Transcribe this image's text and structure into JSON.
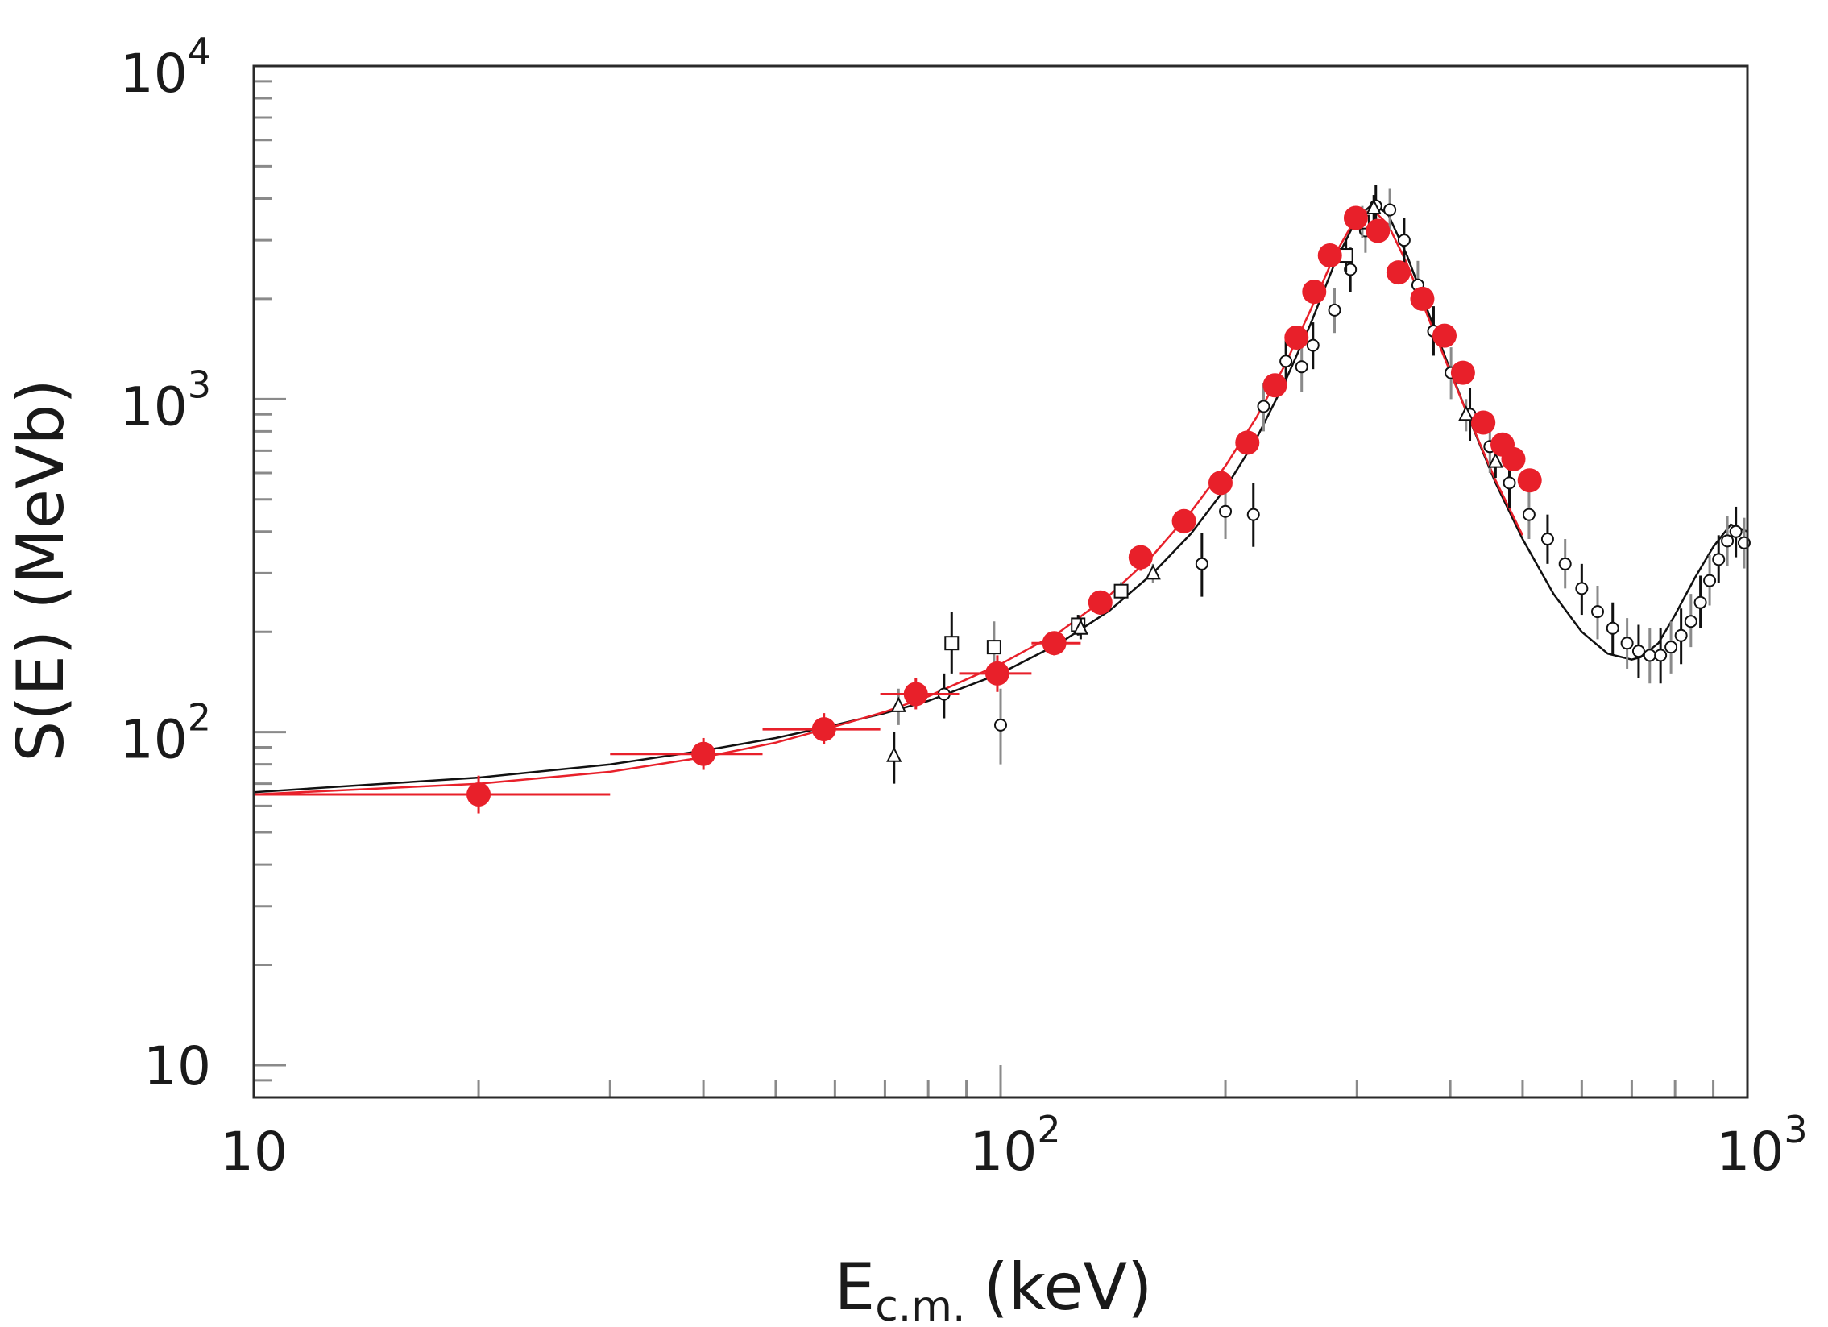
{
  "chart_data": {
    "type": "scatter",
    "title": "",
    "xscale": "log",
    "yscale": "log",
    "xlim": [
      10,
      1000
    ],
    "ylim": [
      8,
      10000
    ],
    "xlabel": {
      "main": "E",
      "sub": "c.m.",
      "unit": "(keV)"
    },
    "ylabel": "S(E)  (MeVb)",
    "xticks": [
      {
        "value": 10,
        "base": "10",
        "exp": ""
      },
      {
        "value": 100,
        "base": "10",
        "exp": "2"
      },
      {
        "value": 1000,
        "base": "10",
        "exp": "3"
      }
    ],
    "yticks": [
      {
        "value": 10,
        "base": "10",
        "exp": ""
      },
      {
        "value": 100,
        "base": "10",
        "exp": "2"
      },
      {
        "value": 1000,
        "base": "10",
        "exp": "3"
      },
      {
        "value": 10000,
        "base": "10",
        "exp": "4"
      }
    ],
    "colors": {
      "red": "#e8202a",
      "black": "#111111",
      "gray": "#8a8a8a",
      "frame": "#2a2a2a"
    },
    "fits": [
      {
        "name": "black fit",
        "color": "#111111",
        "x": [
          10,
          20,
          30,
          40,
          50,
          60,
          70,
          80,
          100,
          120,
          140,
          160,
          180,
          200,
          220,
          240,
          260,
          280,
          300,
          315,
          330,
          350,
          380,
          420,
          460,
          500,
          550,
          600,
          650,
          700,
          720,
          760,
          800,
          850,
          900,
          950,
          1000
        ],
        "y": [
          66,
          73,
          80,
          88,
          96,
          105,
          114,
          124,
          150,
          185,
          232,
          300,
          395,
          540,
          760,
          1120,
          1680,
          2550,
          3500,
          3850,
          3600,
          2700,
          1650,
          920,
          560,
          380,
          260,
          200,
          172,
          165,
          168,
          185,
          225,
          290,
          360,
          420,
          400
        ]
      },
      {
        "name": "red fit",
        "color": "#e8202a",
        "x": [
          10,
          20,
          30,
          40,
          50,
          60,
          70,
          80,
          100,
          120,
          140,
          160,
          180,
          200,
          220,
          240,
          260,
          280,
          300,
          315,
          330,
          350,
          380,
          420,
          460,
          500
        ],
        "y": [
          65,
          70,
          76,
          84,
          93,
          104,
          115,
          128,
          160,
          200,
          258,
          340,
          460,
          630,
          880,
          1260,
          1850,
          2700,
          3550,
          3700,
          3350,
          2550,
          1600,
          920,
          570,
          390
        ]
      }
    ],
    "series": [
      {
        "name": "red filled circles",
        "marker": "filled-circle",
        "color": "#e8202a",
        "points": [
          {
            "x": 20,
            "y": 65,
            "xlo": 10,
            "xhi": 30,
            "ylo": 57,
            "yhi": 74
          },
          {
            "x": 40,
            "y": 86,
            "xlo": 30,
            "xhi": 48,
            "ylo": 77,
            "yhi": 96
          },
          {
            "x": 58,
            "y": 102,
            "xlo": 48,
            "xhi": 69,
            "ylo": 92,
            "yhi": 114
          },
          {
            "x": 77,
            "y": 130,
            "xlo": 69,
            "xhi": 88,
            "ylo": 117,
            "yhi": 145
          },
          {
            "x": 99,
            "y": 150,
            "xlo": 88,
            "xhi": 110,
            "ylo": 132,
            "yhi": 170
          },
          {
            "x": 118,
            "y": 185,
            "xlo": 110,
            "xhi": 128,
            "ylo": 170,
            "yhi": 200
          },
          {
            "x": 136,
            "y": 245,
            "ylo": 225,
            "yhi": 265
          },
          {
            "x": 154,
            "y": 335,
            "ylo": 305,
            "yhi": 365
          },
          {
            "x": 176,
            "y": 430,
            "ylo": 395,
            "yhi": 465
          },
          {
            "x": 197,
            "y": 560,
            "ylo": 520,
            "yhi": 600
          },
          {
            "x": 214,
            "y": 740,
            "ylo": 690,
            "yhi": 790
          },
          {
            "x": 233,
            "y": 1100,
            "ylo": 1020,
            "yhi": 1180
          },
          {
            "x": 249,
            "y": 1530,
            "ylo": 1420,
            "yhi": 1640
          },
          {
            "x": 263,
            "y": 2100,
            "ylo": 1960,
            "yhi": 2240
          },
          {
            "x": 276,
            "y": 2700,
            "ylo": 2520,
            "yhi": 2880
          },
          {
            "x": 299,
            "y": 3500,
            "ylo": 3260,
            "yhi": 3740
          },
          {
            "x": 320,
            "y": 3200,
            "ylo": 2980,
            "yhi": 3420
          },
          {
            "x": 341,
            "y": 2400,
            "ylo": 2240,
            "yhi": 2560
          },
          {
            "x": 367,
            "y": 2000,
            "ylo": 1870,
            "yhi": 2130
          },
          {
            "x": 393,
            "y": 1550,
            "ylo": 1450,
            "yhi": 1650
          },
          {
            "x": 416,
            "y": 1200,
            "ylo": 1120,
            "yhi": 1280
          },
          {
            "x": 443,
            "y": 850,
            "ylo": 795,
            "yhi": 905
          },
          {
            "x": 470,
            "y": 730,
            "ylo": 685,
            "yhi": 775
          },
          {
            "x": 486,
            "y": 660,
            "ylo": 620,
            "yhi": 700
          },
          {
            "x": 511,
            "y": 570,
            "ylo": 535,
            "yhi": 605
          }
        ]
      },
      {
        "name": "open circles",
        "marker": "open-circle",
        "color": "#111111",
        "points": [
          {
            "x": 84,
            "y": 130,
            "ylo": 110,
            "yhi": 150
          },
          {
            "x": 100,
            "y": 105,
            "ylo": 80,
            "yhi": 135
          },
          {
            "x": 186,
            "y": 320,
            "ylo": 255,
            "yhi": 395
          },
          {
            "x": 200,
            "y": 460,
            "ylo": 380,
            "yhi": 560
          },
          {
            "x": 218,
            "y": 450,
            "ylo": 360,
            "yhi": 560
          },
          {
            "x": 225,
            "y": 950,
            "ylo": 800,
            "yhi": 1120
          },
          {
            "x": 241,
            "y": 1300,
            "ylo": 1100,
            "yhi": 1500
          },
          {
            "x": 253,
            "y": 1250,
            "ylo": 1050,
            "yhi": 1480
          },
          {
            "x": 262,
            "y": 1450,
            "ylo": 1230,
            "yhi": 1700
          },
          {
            "x": 280,
            "y": 1850,
            "ylo": 1580,
            "yhi": 2150
          },
          {
            "x": 294,
            "y": 2450,
            "ylo": 2100,
            "yhi": 2850
          },
          {
            "x": 308,
            "y": 3200,
            "ylo": 2750,
            "yhi": 3700
          },
          {
            "x": 318,
            "y": 3800,
            "ylo": 3250,
            "yhi": 4400
          },
          {
            "x": 332,
            "y": 3700,
            "ylo": 3200,
            "yhi": 4300
          },
          {
            "x": 347,
            "y": 3000,
            "ylo": 2550,
            "yhi": 3500
          },
          {
            "x": 362,
            "y": 2200,
            "ylo": 1850,
            "yhi": 2600
          },
          {
            "x": 380,
            "y": 1600,
            "ylo": 1350,
            "yhi": 1900
          },
          {
            "x": 401,
            "y": 1200,
            "ylo": 1000,
            "yhi": 1430
          },
          {
            "x": 425,
            "y": 900,
            "ylo": 750,
            "yhi": 1080
          },
          {
            "x": 452,
            "y": 720,
            "ylo": 600,
            "yhi": 860
          },
          {
            "x": 480,
            "y": 560,
            "ylo": 470,
            "yhi": 670
          },
          {
            "x": 510,
            "y": 450,
            "ylo": 380,
            "yhi": 540
          },
          {
            "x": 540,
            "y": 380,
            "ylo": 320,
            "yhi": 450
          },
          {
            "x": 570,
            "y": 320,
            "ylo": 270,
            "yhi": 380
          },
          {
            "x": 600,
            "y": 270,
            "ylo": 225,
            "yhi": 320
          },
          {
            "x": 630,
            "y": 230,
            "ylo": 190,
            "yhi": 275
          },
          {
            "x": 660,
            "y": 205,
            "ylo": 170,
            "yhi": 245
          },
          {
            "x": 690,
            "y": 185,
            "ylo": 155,
            "yhi": 220
          },
          {
            "x": 715,
            "y": 175,
            "ylo": 145,
            "yhi": 210
          },
          {
            "x": 740,
            "y": 170,
            "ylo": 140,
            "yhi": 205
          },
          {
            "x": 765,
            "y": 170,
            "ylo": 140,
            "yhi": 205
          },
          {
            "x": 790,
            "y": 180,
            "ylo": 150,
            "yhi": 215
          },
          {
            "x": 815,
            "y": 195,
            "ylo": 160,
            "yhi": 235
          },
          {
            "x": 840,
            "y": 215,
            "ylo": 180,
            "yhi": 260
          },
          {
            "x": 865,
            "y": 245,
            "ylo": 205,
            "yhi": 295
          },
          {
            "x": 890,
            "y": 285,
            "ylo": 240,
            "yhi": 340
          },
          {
            "x": 915,
            "y": 330,
            "ylo": 280,
            "yhi": 390
          },
          {
            "x": 940,
            "y": 375,
            "ylo": 315,
            "yhi": 445
          },
          {
            "x": 965,
            "y": 400,
            "ylo": 335,
            "yhi": 475
          },
          {
            "x": 990,
            "y": 370,
            "ylo": 310,
            "yhi": 440
          }
        ]
      },
      {
        "name": "open squares",
        "marker": "open-square",
        "color": "#111111",
        "points": [
          {
            "x": 86,
            "y": 185,
            "ylo": 150,
            "yhi": 230
          },
          {
            "x": 98,
            "y": 180,
            "ylo": 150,
            "yhi": 215
          },
          {
            "x": 127,
            "y": 210,
            "ylo": 195,
            "yhi": 225
          },
          {
            "x": 145,
            "y": 265,
            "ylo": 250,
            "yhi": 282
          },
          {
            "x": 290,
            "y": 2700,
            "ylo": 2400,
            "yhi": 3000
          },
          {
            "x": 305,
            "y": 3400,
            "ylo": 3050,
            "yhi": 3800
          }
        ]
      },
      {
        "name": "open triangles",
        "marker": "open-triangle",
        "color": "#111111",
        "points": [
          {
            "x": 72,
            "y": 85,
            "ylo": 70,
            "yhi": 100
          },
          {
            "x": 73,
            "y": 120,
            "ylo": 105,
            "yhi": 135
          },
          {
            "x": 128,
            "y": 205,
            "ylo": 190,
            "yhi": 220
          },
          {
            "x": 160,
            "y": 300,
            "ylo": 280,
            "yhi": 320
          },
          {
            "x": 316,
            "y": 3750,
            "ylo": 3400,
            "yhi": 4100
          },
          {
            "x": 420,
            "y": 900,
            "ylo": 800,
            "yhi": 1000
          },
          {
            "x": 460,
            "y": 650,
            "ylo": 580,
            "yhi": 720
          }
        ]
      }
    ]
  }
}
